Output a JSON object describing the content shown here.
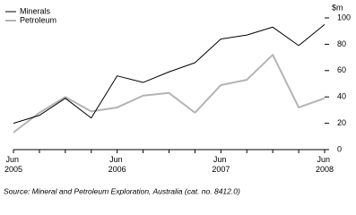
{
  "chart_data": {
    "type": "line",
    "unit_label": "$m",
    "source": "Source: Mineral and Petroleum Exploration, Australia (cat. no. 8412.0)",
    "categories": [
      "Jun 2005",
      null,
      null,
      null,
      "Jun 2006",
      null,
      null,
      null,
      "Jun 2007",
      null,
      null,
      null,
      "Jun 2008"
    ],
    "series": [
      {
        "name": "Minerals",
        "color": "#000000",
        "values": [
          20,
          26,
          39,
          24,
          56,
          51,
          59,
          66,
          84,
          87,
          93,
          79,
          95
        ]
      },
      {
        "name": "Petroleum",
        "color": "#b4b4b4",
        "values": [
          13,
          28,
          40,
          29,
          32,
          41,
          43,
          28,
          49,
          53,
          72,
          32,
          39
        ]
      }
    ],
    "ylim": [
      0,
      100
    ],
    "yticks": [
      0,
      20,
      40,
      60,
      80,
      100
    ],
    "grid": false,
    "legend": "top-left"
  }
}
